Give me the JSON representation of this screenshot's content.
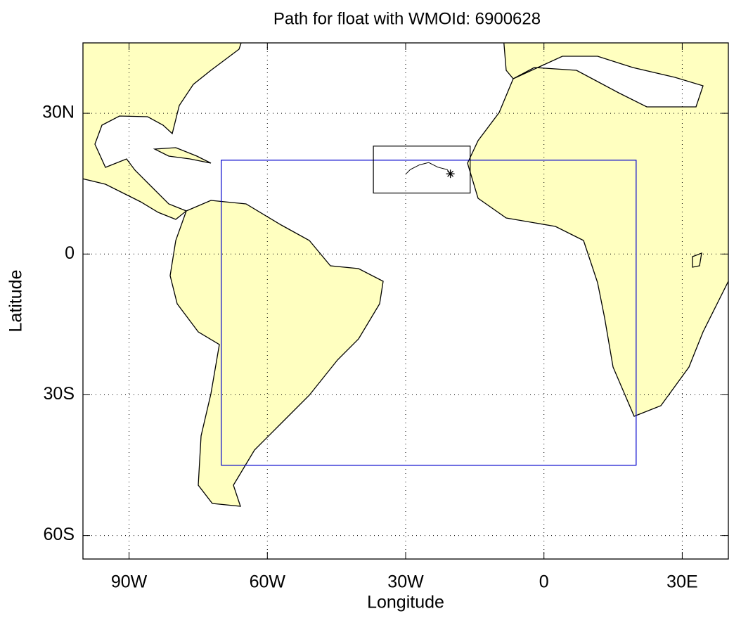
{
  "chart_data": {
    "type": "map",
    "title": "Path for float with WMOId: 6900628",
    "xlabel": "Longitude",
    "ylabel": "Latitude",
    "xlim": [
      -100,
      40
    ],
    "ylim": [
      -65,
      45
    ],
    "xticks": [
      {
        "value": -90,
        "label": "90W"
      },
      {
        "value": -60,
        "label": "60W"
      },
      {
        "value": -30,
        "label": "30W"
      },
      0,
      {
        "value": 30,
        "label": "30E"
      }
    ],
    "yticks": [
      {
        "value": -60,
        "label": "60S"
      },
      {
        "value": -30,
        "label": "30S"
      },
      0,
      {
        "value": 30,
        "label": "30N"
      }
    ],
    "grid": true,
    "boxes": [
      {
        "color": "#0000cc",
        "lon": [
          -70,
          20
        ],
        "lat": [
          -45,
          20
        ]
      },
      {
        "color": "#000000",
        "lon": [
          -37,
          -16
        ],
        "lat": [
          13,
          23
        ]
      }
    ],
    "track": {
      "color": "#000000",
      "lon": [
        -30,
        -29,
        -27,
        -25,
        -23,
        -21,
        -20.3
      ],
      "lat": [
        17,
        18,
        19,
        19.5,
        18.5,
        18,
        17.1
      ]
    }
  }
}
